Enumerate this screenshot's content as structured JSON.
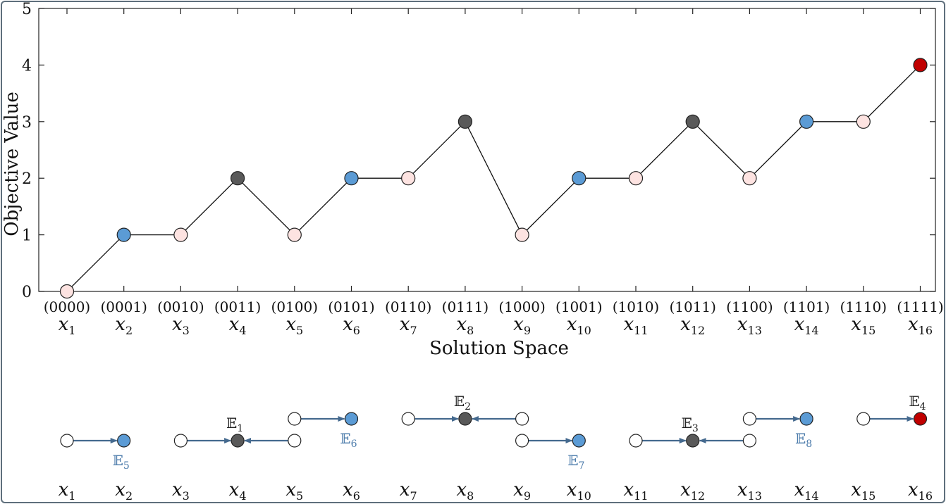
{
  "chart_data": {
    "type": "line",
    "title": "",
    "xlabel": "Solution Space",
    "ylabel": "Objective Value",
    "ylim": [
      0,
      5
    ],
    "yticks": [
      "0",
      "1",
      "2",
      "3",
      "4",
      "5"
    ],
    "binary_labels": [
      "(0000)",
      "(0001)",
      "(0010)",
      "(0011)",
      "(0100)",
      "(0101)",
      "(0110)",
      "(0111)",
      "(1000)",
      "(1001)",
      "(1010)",
      "(1011)",
      "(1100)",
      "(1101)",
      "(1110)",
      "(1111)"
    ],
    "var_symbol": "x",
    "var_subscripts": [
      "1",
      "2",
      "3",
      "4",
      "5",
      "6",
      "7",
      "8",
      "9",
      "10",
      "11",
      "12",
      "13",
      "14",
      "15",
      "16"
    ],
    "values": [
      0,
      1,
      1,
      2,
      1,
      2,
      2,
      3,
      1,
      2,
      2,
      3,
      2,
      3,
      3,
      4
    ],
    "point_kinds": [
      "pink",
      "blue",
      "pink",
      "dark",
      "pink",
      "blue",
      "pink",
      "dark",
      "pink",
      "blue",
      "pink",
      "dark",
      "pink",
      "blue",
      "pink",
      "red"
    ],
    "grid": false,
    "colors": {
      "pink": "#fde3e1",
      "blue": "#5b9bd5",
      "dark": "#595959",
      "red": "#c00000",
      "white": "#ffffff",
      "arrow": "#44698e",
      "blue_label": "#4a7aaa"
    }
  },
  "basins": {
    "nodes": [
      {
        "x": 1,
        "level": 0,
        "kind": "white"
      },
      {
        "x": 2,
        "level": 0,
        "kind": "blue"
      },
      {
        "x": 3,
        "level": 0,
        "kind": "white"
      },
      {
        "x": 4,
        "level": 0,
        "kind": "dark"
      },
      {
        "x": 5,
        "level": 0,
        "kind": "white"
      },
      {
        "x": 5,
        "level": 1,
        "kind": "white"
      },
      {
        "x": 6,
        "level": 1,
        "kind": "blue"
      },
      {
        "x": 7,
        "level": 1,
        "kind": "white"
      },
      {
        "x": 8,
        "level": 1,
        "kind": "dark"
      },
      {
        "x": 9,
        "level": 1,
        "kind": "white"
      },
      {
        "x": 9,
        "level": 0,
        "kind": "white"
      },
      {
        "x": 10,
        "level": 0,
        "kind": "blue"
      },
      {
        "x": 11,
        "level": 0,
        "kind": "white"
      },
      {
        "x": 12,
        "level": 0,
        "kind": "dark"
      },
      {
        "x": 13,
        "level": 0,
        "kind": "white"
      },
      {
        "x": 13,
        "level": 1,
        "kind": "white"
      },
      {
        "x": 14,
        "level": 1,
        "kind": "blue"
      },
      {
        "x": 15,
        "level": 1,
        "kind": "white"
      },
      {
        "x": 16,
        "level": 1,
        "kind": "red"
      }
    ],
    "arrows": [
      {
        "from": 1,
        "to": 2,
        "level": 0
      },
      {
        "from": 3,
        "to": 4,
        "level": 0
      },
      {
        "from": 5,
        "to": 4,
        "level": 0
      },
      {
        "from": 5,
        "to": 6,
        "level": 1
      },
      {
        "from": 7,
        "to": 8,
        "level": 1
      },
      {
        "from": 9,
        "to": 8,
        "level": 1
      },
      {
        "from": 9,
        "to": 10,
        "level": 0
      },
      {
        "from": 11,
        "to": 12,
        "level": 0
      },
      {
        "from": 13,
        "to": 12,
        "level": 0
      },
      {
        "from": 13,
        "to": 14,
        "level": 1
      },
      {
        "from": 15,
        "to": 16,
        "level": 1
      }
    ],
    "labels": [
      {
        "symbol": "𝔼",
        "sub": "1",
        "x": 4,
        "pos": "above",
        "level": 0,
        "color": "dark"
      },
      {
        "symbol": "𝔼",
        "sub": "2",
        "x": 8,
        "pos": "above",
        "level": 1,
        "color": "dark"
      },
      {
        "symbol": "𝔼",
        "sub": "3",
        "x": 12,
        "pos": "above",
        "level": 0,
        "color": "dark"
      },
      {
        "symbol": "𝔼",
        "sub": "4",
        "x": 16,
        "pos": "above",
        "level": 1,
        "color": "dark"
      },
      {
        "symbol": "𝔼",
        "sub": "5",
        "x": 2,
        "pos": "below",
        "level": 0,
        "color": "blue"
      },
      {
        "symbol": "𝔼",
        "sub": "6",
        "x": 6,
        "pos": "below",
        "level": 1,
        "color": "blue"
      },
      {
        "symbol": "𝔼",
        "sub": "7",
        "x": 10,
        "pos": "below",
        "level": 0,
        "color": "blue"
      },
      {
        "symbol": "𝔼",
        "sub": "8",
        "x": 14,
        "pos": "below",
        "level": 1,
        "color": "blue"
      }
    ]
  }
}
